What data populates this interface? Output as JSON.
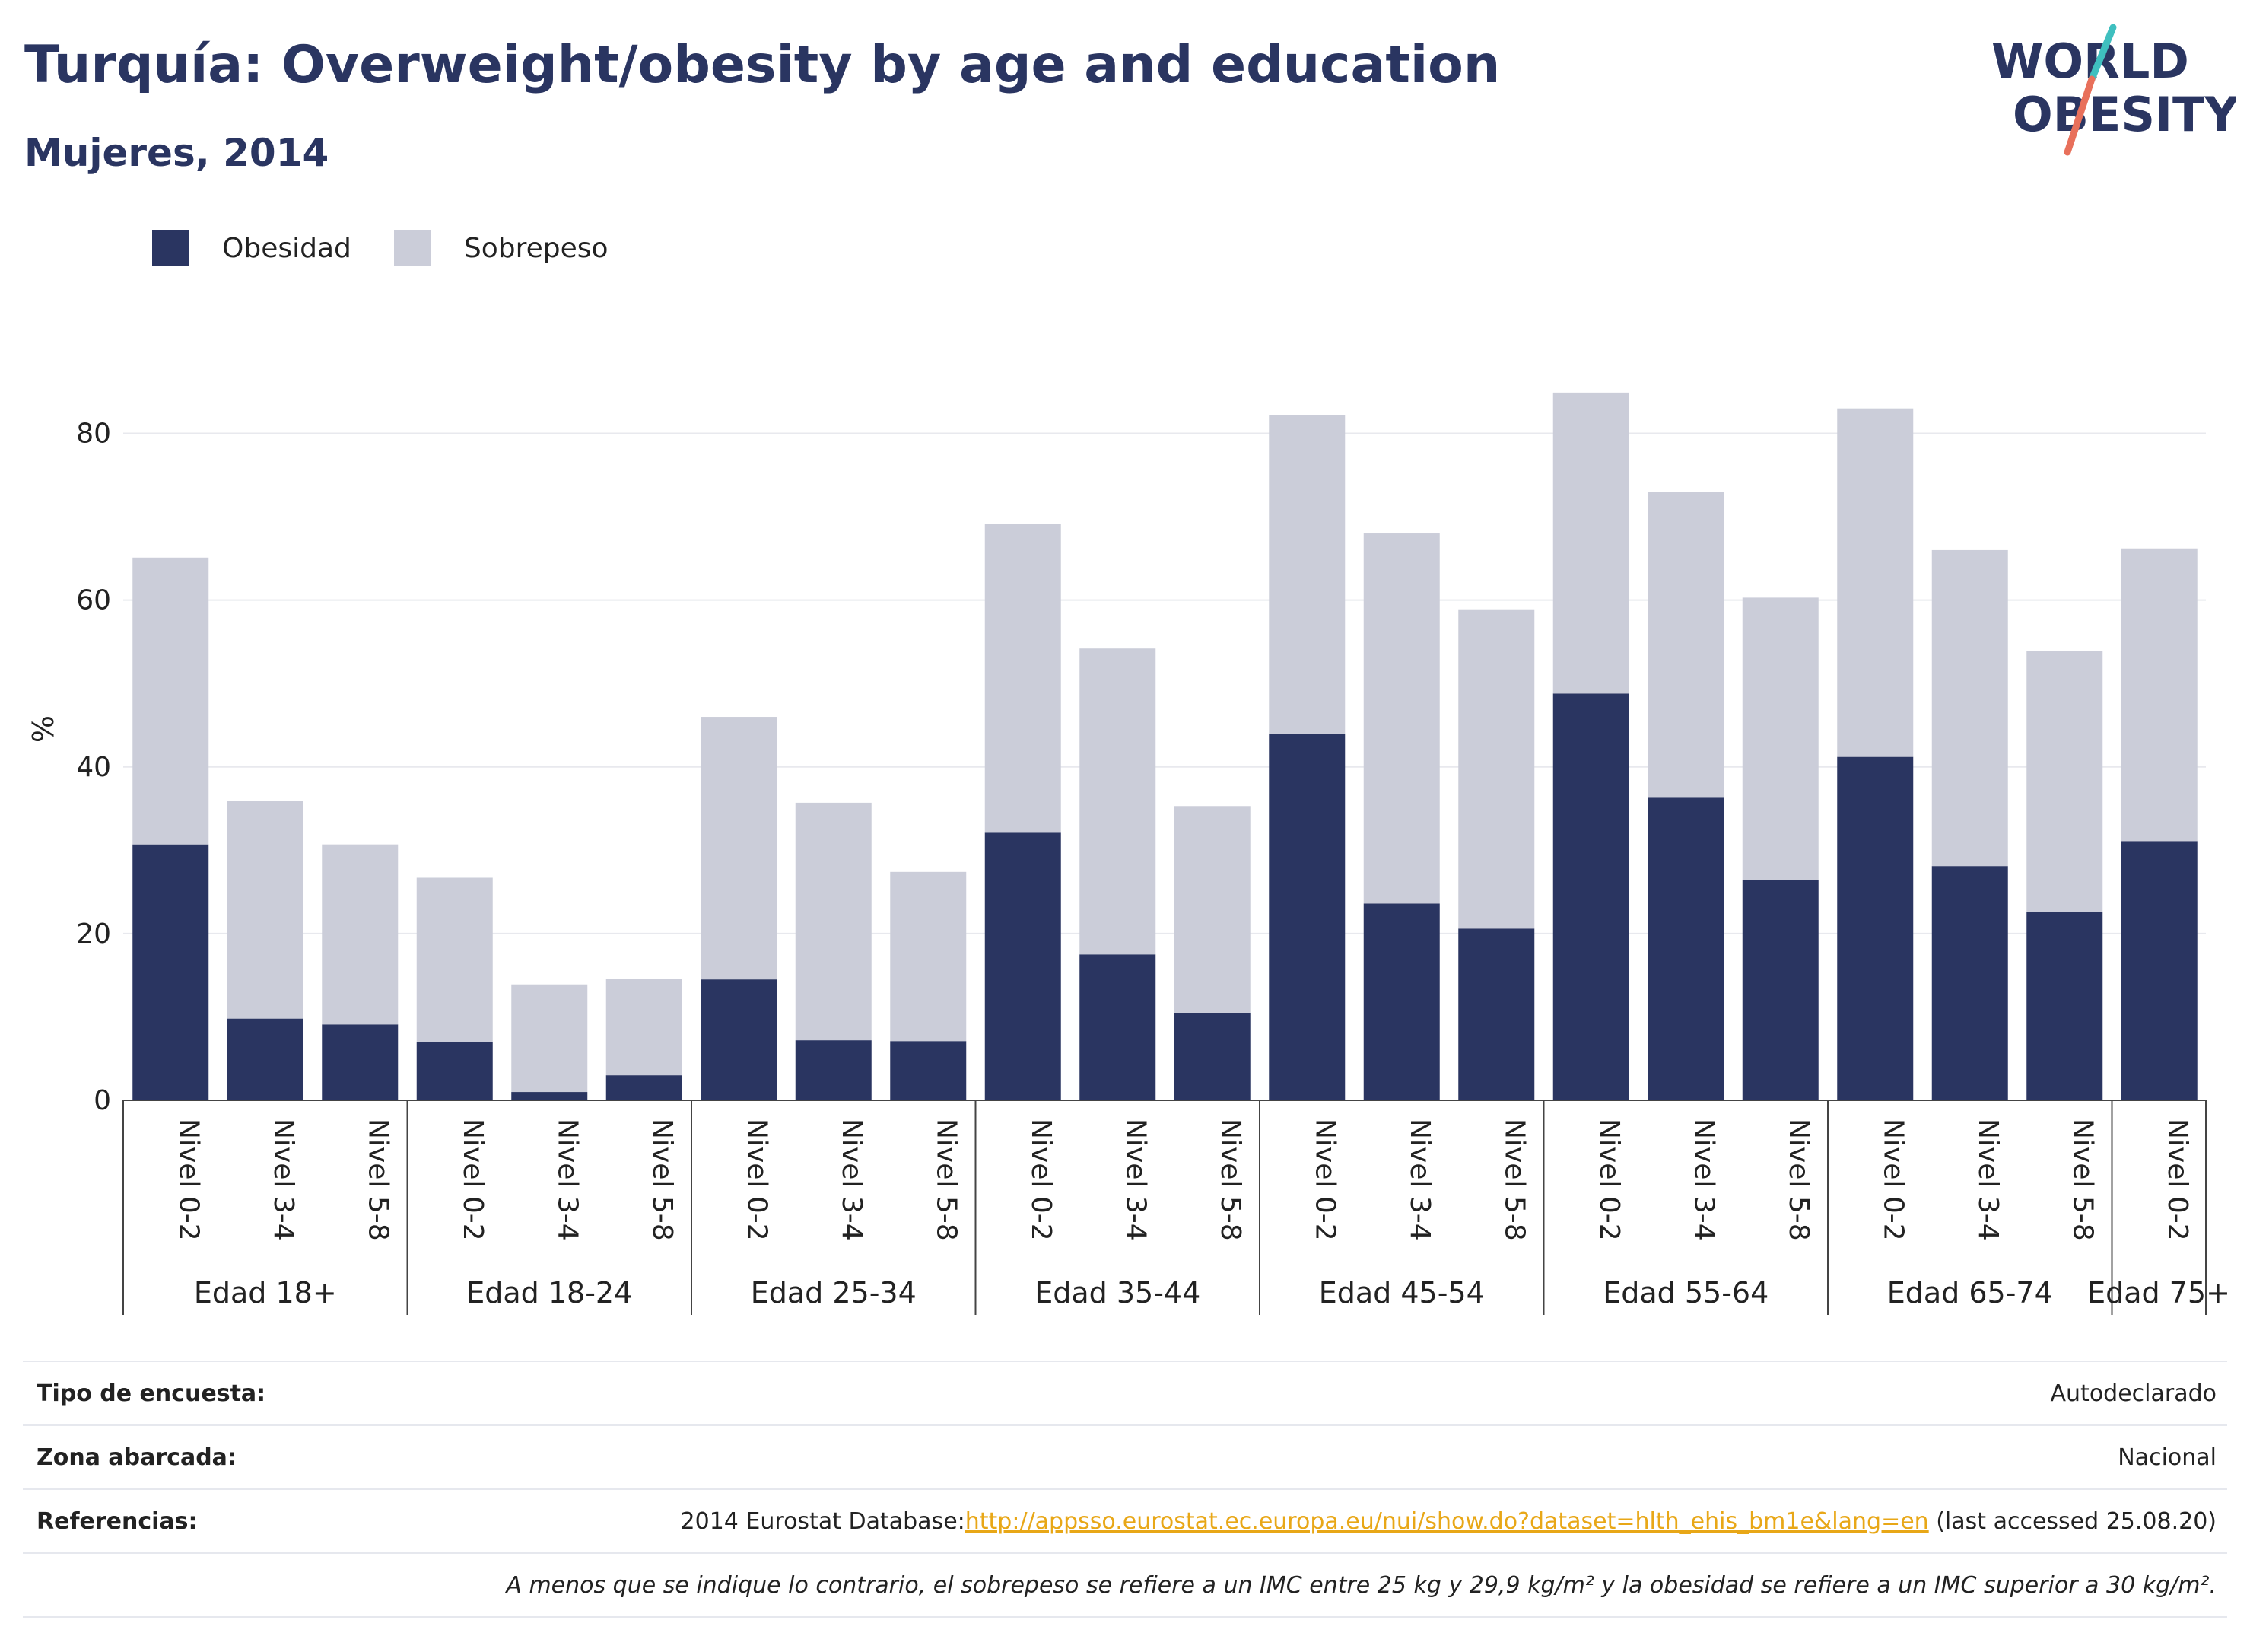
{
  "header": {
    "title": "Turquía: Overweight/obesity by age and education",
    "subtitle": "Mujeres, 2014"
  },
  "logo": {
    "line1": "WORLD",
    "line2": "OBESITY"
  },
  "colors": {
    "obesity": "#2a3561",
    "overweight": "#cbcdd9",
    "accent_teal": "#3fbfbf",
    "accent_coral": "#e8705b",
    "link": "#e8a717"
  },
  "legend": [
    {
      "label": "Obesidad",
      "color": "#2a3561"
    },
    {
      "label": "Sobrepeso",
      "color": "#cbcdd9"
    }
  ],
  "chart_data": {
    "type": "bar",
    "stacked": true,
    "title": "Turquía: Overweight/obesity by age and education",
    "subtitle": "Mujeres, 2014",
    "ylabel": "%",
    "ylim": [
      0,
      90
    ],
    "yticks": [
      0,
      20,
      40,
      60,
      80
    ],
    "grid": true,
    "legend_position": "top-left",
    "groups": [
      {
        "label": "Edad 18+",
        "categories": [
          "Nivel 0-2",
          "Nivel 3-4",
          "Nivel 5-8"
        ]
      },
      {
        "label": "Edad 18-24",
        "categories": [
          "Nivel 0-2",
          "Nivel 3-4",
          "Nivel 5-8"
        ]
      },
      {
        "label": "Edad 25-34",
        "categories": [
          "Nivel 0-2",
          "Nivel 3-4",
          "Nivel 5-8"
        ]
      },
      {
        "label": "Edad 35-44",
        "categories": [
          "Nivel 0-2",
          "Nivel 3-4",
          "Nivel 5-8"
        ]
      },
      {
        "label": "Edad 45-54",
        "categories": [
          "Nivel 0-2",
          "Nivel 3-4",
          "Nivel 5-8"
        ]
      },
      {
        "label": "Edad 55-64",
        "categories": [
          "Nivel 0-2",
          "Nivel 3-4",
          "Nivel 5-8"
        ]
      },
      {
        "label": "Edad 65-74",
        "categories": [
          "Nivel 0-2",
          "Nivel 3-4",
          "Nivel 5-8"
        ]
      },
      {
        "label": "Edad 75+",
        "categories": [
          "Nivel 0-2"
        ]
      }
    ],
    "series": [
      {
        "name": "Obesidad",
        "values": [
          30.7,
          9.8,
          9.1,
          7.0,
          1.0,
          3.0,
          14.5,
          7.2,
          7.1,
          32.1,
          17.5,
          10.5,
          44.0,
          23.6,
          20.6,
          48.8,
          36.3,
          26.4,
          41.2,
          28.1,
          22.6,
          31.1
        ]
      },
      {
        "name": "Sobrepeso",
        "values": [
          34.4,
          26.1,
          21.6,
          19.7,
          12.9,
          11.6,
          31.5,
          28.5,
          20.3,
          37.0,
          36.7,
          24.8,
          38.2,
          44.4,
          38.3,
          36.1,
          36.7,
          33.9,
          41.8,
          37.9,
          31.3,
          35.1
        ]
      }
    ]
  },
  "info": {
    "survey_label": "Tipo de encuesta:",
    "survey_value": "Autodeclarado",
    "area_label": "Zona abarcada:",
    "area_value": "Nacional",
    "ref_label": "Referencias:",
    "ref_prefix": "2014 Eurostat Database:",
    "ref_link": "http://appsso.eurostat.ec.europa.eu/nui/show.do?dataset=hlth_ehis_bm1e&lang=en",
    "ref_suffix": " (last accessed 25.08.20)",
    "note": "A menos que se indique lo contrario, el sobrepeso se refiere a un IMC entre 25 kg y 29,9 kg/m² y la obesidad se refiere a un IMC superior a 30 kg/m²."
  }
}
